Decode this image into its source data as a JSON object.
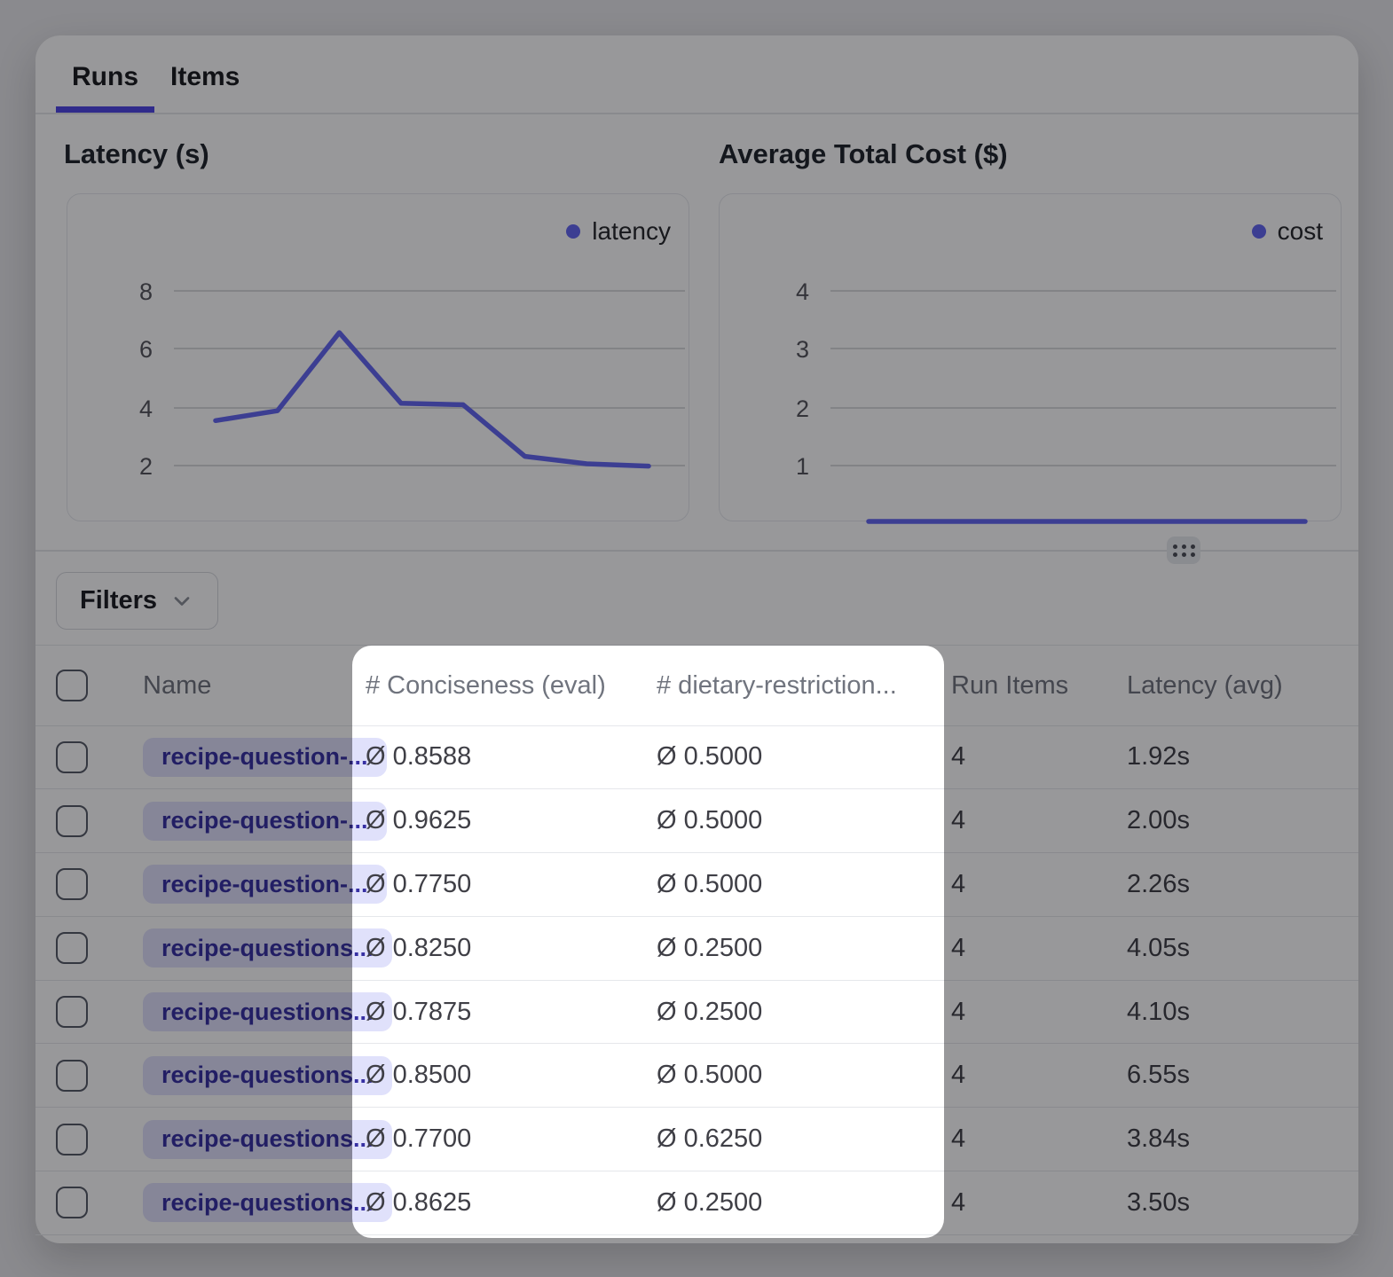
{
  "tabs": {
    "runs": "Runs",
    "items": "Items"
  },
  "chart_data": [
    {
      "type": "line",
      "title": "Latency (s)",
      "series": [
        {
          "name": "latency",
          "values": [
            3.5,
            3.84,
            6.55,
            4.1,
            4.05,
            2.26,
            2.0,
            1.92
          ]
        }
      ],
      "yticks": [
        8,
        6,
        4,
        2
      ],
      "ylim": [
        0,
        9
      ],
      "grid": true,
      "legend_position": "top-right",
      "accent": "#6366f1"
    },
    {
      "type": "line",
      "title": "Average Total Cost ($)",
      "series": [
        {
          "name": "cost",
          "values": [
            0,
            0,
            0,
            0,
            0,
            0,
            0,
            0
          ]
        }
      ],
      "yticks": [
        4,
        3,
        2,
        1
      ],
      "ylim": [
        0,
        4.5
      ],
      "grid": true,
      "legend_position": "top-right",
      "accent": "#6366f1"
    }
  ],
  "filters": {
    "label": "Filters"
  },
  "table": {
    "columns": {
      "name": "Name",
      "conciseness": "# Conciseness (eval)",
      "dietary": "# dietary-restriction...",
      "run_items": "Run Items",
      "latency": "Latency (avg)"
    },
    "rows": [
      {
        "name": "recipe-question-...",
        "conciseness": "Ø 0.8588",
        "dietary": "Ø 0.5000",
        "run_items": "4",
        "latency": "1.92s"
      },
      {
        "name": "recipe-question-...",
        "conciseness": "Ø 0.9625",
        "dietary": "Ø 0.5000",
        "run_items": "4",
        "latency": "2.00s"
      },
      {
        "name": "recipe-question-...",
        "conciseness": "Ø 0.7750",
        "dietary": "Ø 0.5000",
        "run_items": "4",
        "latency": "2.26s"
      },
      {
        "name": "recipe-questions...",
        "conciseness": "Ø 0.8250",
        "dietary": "Ø 0.2500",
        "run_items": "4",
        "latency": "4.05s"
      },
      {
        "name": "recipe-questions...",
        "conciseness": "Ø 0.7875",
        "dietary": "Ø 0.2500",
        "run_items": "4",
        "latency": "4.10s"
      },
      {
        "name": "recipe-questions...",
        "conciseness": "Ø 0.8500",
        "dietary": "Ø 0.5000",
        "run_items": "4",
        "latency": "6.55s"
      },
      {
        "name": "recipe-questions...",
        "conciseness": "Ø 0.7700",
        "dietary": "Ø 0.6250",
        "run_items": "4",
        "latency": "3.84s"
      },
      {
        "name": "recipe-questions...",
        "conciseness": "Ø 0.8625",
        "dietary": "Ø 0.2500",
        "run_items": "4",
        "latency": "3.50s"
      }
    ]
  }
}
